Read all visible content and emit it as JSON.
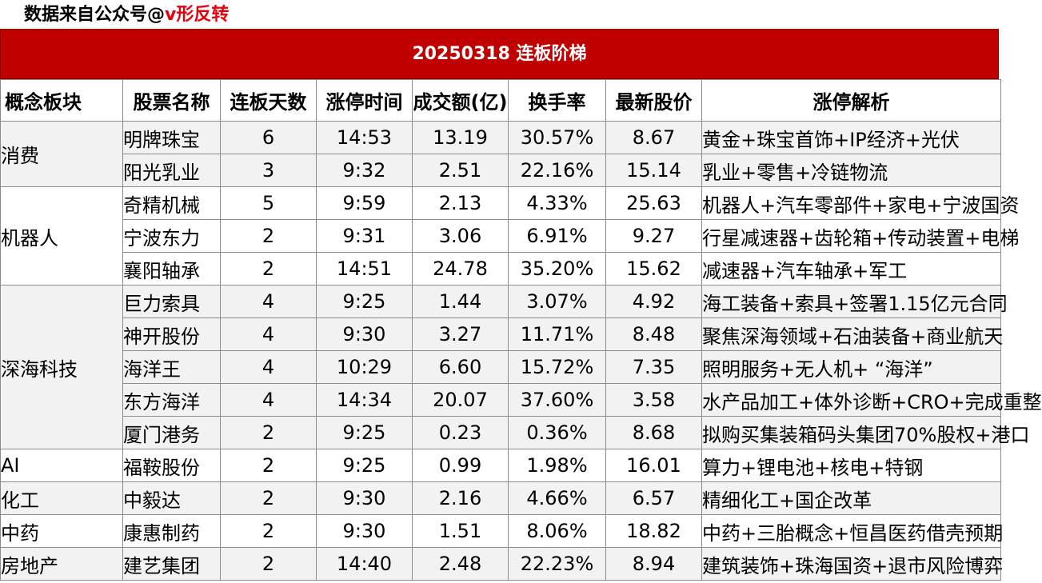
{
  "watermark": {
    "prefix": "数据来自公众号@",
    "brand": "v形反转"
  },
  "title": "20250318  连板阶梯",
  "headers": [
    "概念板块",
    "股票名称",
    "连板天数",
    "涨停时间",
    "成交额(亿)",
    "换手率",
    "最新股价",
    "涨停解析"
  ],
  "colors": {
    "title_bg": "#c00000",
    "brand": "#e8000b",
    "row_shade": "#f2f2f2",
    "grid": "#8c8c8c"
  },
  "groups": [
    {
      "sector": "消费",
      "stocks": [
        {
          "name": "明牌珠宝",
          "days": "6",
          "time": "14:53",
          "amount": "13.19",
          "turnover": "30.57%",
          "price": "8.67",
          "reason": "黄金+珠宝首饰+IP经济+光伏"
        },
        {
          "name": "阳光乳业",
          "days": "3",
          "time": "9:32",
          "amount": "2.51",
          "turnover": "22.16%",
          "price": "15.14",
          "reason": "乳业+零售+冷链物流"
        }
      ]
    },
    {
      "sector": "机器人",
      "stocks": [
        {
          "name": "奇精机械",
          "days": "5",
          "time": "9:59",
          "amount": "2.13",
          "turnover": "4.33%",
          "price": "25.63",
          "reason": "机器人+汽车零部件+家电+宁波国资"
        },
        {
          "name": "宁波东力",
          "days": "2",
          "time": "9:31",
          "amount": "3.06",
          "turnover": "6.91%",
          "price": "9.27",
          "reason": "行星减速器+齿轮箱+传动装置+电梯"
        },
        {
          "name": "襄阳轴承",
          "days": "2",
          "time": "14:51",
          "amount": "24.78",
          "turnover": "35.20%",
          "price": "15.62",
          "reason": "减速器+汽车轴承+军工"
        }
      ]
    },
    {
      "sector": "深海科技",
      "stocks": [
        {
          "name": "巨力索具",
          "days": "4",
          "time": "9:25",
          "amount": "1.44",
          "turnover": "3.07%",
          "price": "4.92",
          "reason": "海工装备+索具+签署1.15亿元合同"
        },
        {
          "name": "神开股份",
          "days": "4",
          "time": "9:30",
          "amount": "3.27",
          "turnover": "11.71%",
          "price": "8.48",
          "reason": "聚焦深海领域+石油装备+商业航天"
        },
        {
          "name": "海洋王",
          "days": "4",
          "time": "10:29",
          "amount": "6.60",
          "turnover": "15.72%",
          "price": "7.35",
          "reason": "照明服务+无人机+ “海洋”"
        },
        {
          "name": "东方海洋",
          "days": "4",
          "time": "14:34",
          "amount": "20.07",
          "turnover": "37.60%",
          "price": "3.58",
          "reason": "水产品加工+体外诊断+CRO+完成重整"
        },
        {
          "name": "厦门港务",
          "days": "2",
          "time": "9:25",
          "amount": "0.23",
          "turnover": "0.36%",
          "price": "8.68",
          "reason": "拟购买集装箱码头集团70%股权+港口"
        }
      ]
    },
    {
      "sector": "AI",
      "stocks": [
        {
          "name": "福鞍股份",
          "days": "2",
          "time": "9:25",
          "amount": "0.99",
          "turnover": "1.98%",
          "price": "16.01",
          "reason": "算力+锂电池+核电+特钢"
        }
      ]
    },
    {
      "sector": "化工",
      "stocks": [
        {
          "name": "中毅达",
          "days": "2",
          "time": "9:30",
          "amount": "2.16",
          "turnover": "4.66%",
          "price": "6.57",
          "reason": "精细化工+国企改革"
        }
      ]
    },
    {
      "sector": "中药",
      "stocks": [
        {
          "name": "康惠制药",
          "days": "2",
          "time": "9:30",
          "amount": "1.51",
          "turnover": "8.06%",
          "price": "18.82",
          "reason": "中药+三胎概念+恒昌医药借壳预期"
        }
      ]
    },
    {
      "sector": "房地产",
      "stocks": [
        {
          "name": "建艺集团",
          "days": "2",
          "time": "14:40",
          "amount": "2.48",
          "turnover": "22.23%",
          "price": "8.94",
          "reason": "建筑装饰+珠海国资+退市风险博弈"
        }
      ]
    }
  ]
}
